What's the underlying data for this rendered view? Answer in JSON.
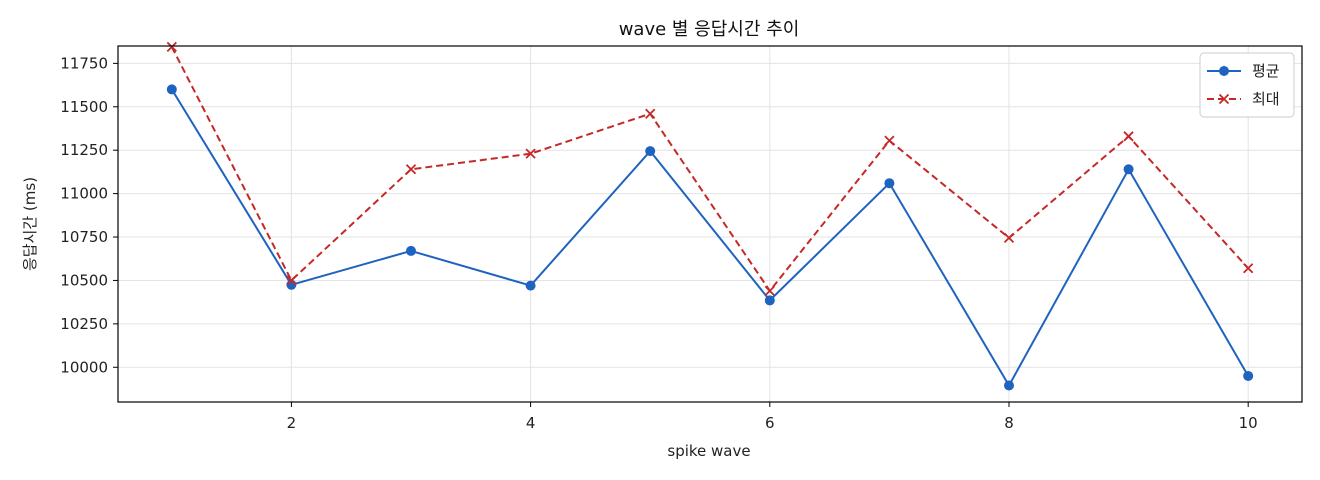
{
  "chart_data": {
    "type": "line",
    "title": "wave 별 응답시간 추이",
    "xlabel": "spike wave",
    "ylabel": "응답시간 (ms)",
    "x": [
      1,
      2,
      3,
      4,
      5,
      6,
      7,
      8,
      9,
      10
    ],
    "xlim": [
      0.55,
      10.45
    ],
    "ylim": [
      9800,
      11850
    ],
    "xticks": [
      2,
      4,
      6,
      8,
      10
    ],
    "yticks": [
      10000,
      10250,
      10500,
      10750,
      11000,
      11250,
      11500,
      11750
    ],
    "grid": true,
    "legend_position": "top-right",
    "series": [
      {
        "name": "평균",
        "color": "#1f63c0",
        "line_style": "solid",
        "marker": "circle",
        "values": [
          11600,
          10475,
          10670,
          10470,
          11245,
          10385,
          11060,
          9895,
          11140,
          9950
        ]
      },
      {
        "name": "최대",
        "color": "#c62828",
        "line_style": "dashed",
        "marker": "x",
        "values": [
          11845,
          10500,
          11140,
          11230,
          11460,
          10440,
          11305,
          10745,
          11330,
          10570
        ]
      }
    ]
  }
}
